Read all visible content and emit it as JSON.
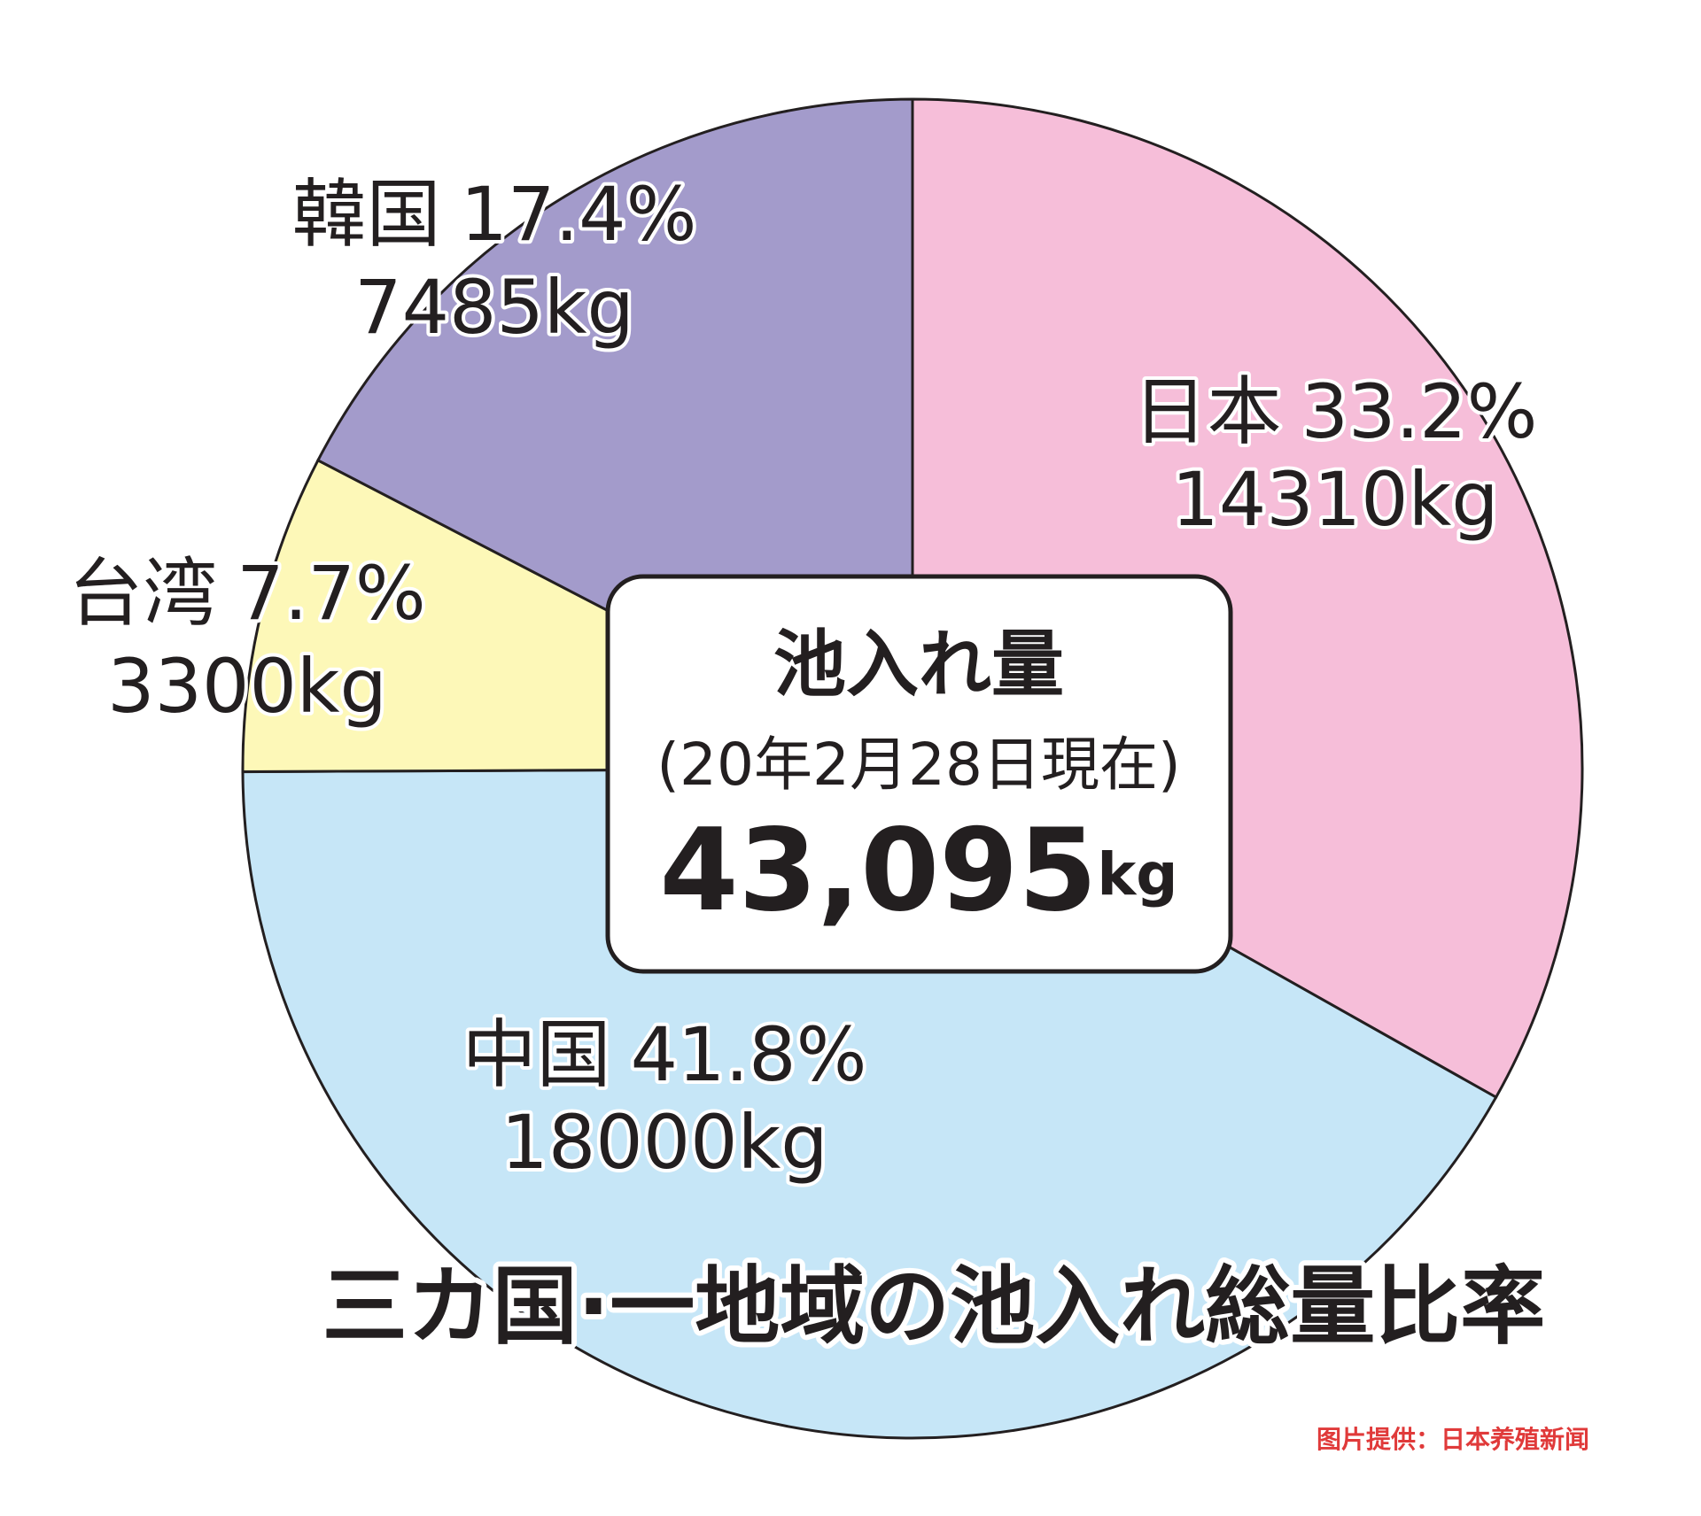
{
  "chart_data": {
    "type": "pie",
    "title": "三カ国·一地域の池入れ総量比率",
    "categories": [
      "日本",
      "中国",
      "台湾",
      "韓国"
    ],
    "values": [
      33.2,
      41.8,
      7.7,
      17.4
    ],
    "value_labels": [
      "33.2%",
      "41.8%",
      "7.7%",
      "17.4%"
    ],
    "amount_labels": [
      "14310kg",
      "18000kg",
      "3300kg",
      "7485kg"
    ],
    "colors": [
      "#f6bed9",
      "#c6e6f7",
      "#fdf8b8",
      "#a39bcb"
    ],
    "center_title": "池入れ量",
    "center_subtitle": "(20年2月28日現在)",
    "total_label": "43,095",
    "total_unit": "kg",
    "credit": "图片提供：日本养殖新闻"
  }
}
